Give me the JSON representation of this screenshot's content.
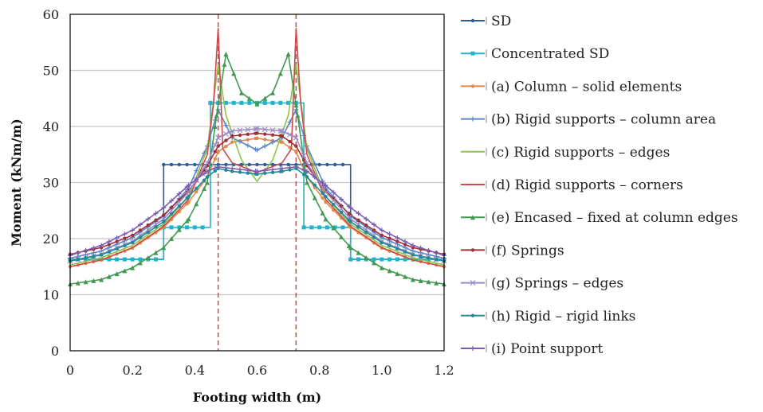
{
  "chart_data": {
    "type": "line",
    "title": "",
    "xlabel": "Footing width (m)",
    "ylabel": "Moment (kNm/m)",
    "xlim": [
      0,
      1.2
    ],
    "ylim": [
      0,
      60
    ],
    "x_ticks": [
      "0",
      "0.2",
      "0.4",
      "0.6",
      "0.8",
      "1.0",
      "1.2"
    ],
    "y_ticks": [
      "0",
      "10",
      "20",
      "30",
      "40",
      "50",
      "60"
    ],
    "grid": "horizontal",
    "legend_position": "right",
    "reference_lines": [
      {
        "x": 0.475,
        "color": "#e04040",
        "style": "dashed"
      },
      {
        "x": 0.725,
        "color": "#e04040",
        "style": "dashed"
      }
    ],
    "series": [
      {
        "name": "SD",
        "color": "#2a5b9c",
        "marker": "dot",
        "x": [
          0,
          0.3,
          0.3,
          0.9,
          0.9,
          1.2
        ],
        "y": [
          16.3,
          16.3,
          33.2,
          33.2,
          16.3,
          16.3
        ]
      },
      {
        "name": "Concentrated SD",
        "color": "#22b2cc",
        "marker": "square",
        "x": [
          0,
          0.3,
          0.3,
          0.45,
          0.45,
          0.75,
          0.75,
          0.9,
          0.9,
          1.2
        ],
        "y": [
          16.3,
          16.3,
          22.0,
          22.0,
          44.2,
          44.2,
          22.0,
          22.0,
          16.3,
          16.3
        ]
      },
      {
        "name": "(a)  Column – solid elements",
        "color": "#e0894a",
        "marker": "dot",
        "x": [
          0,
          0.1,
          0.2,
          0.3,
          0.38,
          0.44,
          0.475,
          0.52,
          0.6,
          0.68,
          0.725,
          0.76,
          0.82,
          0.9,
          1.0,
          1.1,
          1.2
        ],
        "y": [
          15.0,
          16.2,
          18.3,
          22.0,
          26.5,
          31.0,
          35.5,
          37.2,
          37.9,
          37.2,
          35.5,
          31.0,
          26.5,
          22.0,
          18.3,
          16.2,
          15.0
        ]
      },
      {
        "name": "(b)  Rigid supports – column area",
        "color": "#5c86c8",
        "marker": "plus",
        "x": [
          0,
          0.1,
          0.2,
          0.3,
          0.38,
          0.44,
          0.475,
          0.52,
          0.6,
          0.68,
          0.725,
          0.76,
          0.82,
          0.9,
          1.0,
          1.1,
          1.2
        ],
        "y": [
          16.5,
          17.8,
          20.2,
          24.0,
          29.0,
          36.5,
          43.0,
          38.0,
          35.8,
          38.0,
          43.0,
          36.5,
          29.0,
          24.0,
          20.2,
          17.8,
          16.5
        ]
      },
      {
        "name": "(c)  Rigid supports – edges",
        "color": "#8cc44a",
        "marker": "none",
        "x": [
          0,
          0.1,
          0.2,
          0.3,
          0.38,
          0.44,
          0.475,
          0.5,
          0.55,
          0.6,
          0.65,
          0.7,
          0.725,
          0.76,
          0.82,
          0.9,
          1.0,
          1.1,
          1.2
        ],
        "y": [
          15.3,
          16.6,
          18.8,
          22.6,
          27.5,
          36.0,
          51.0,
          42.0,
          34.0,
          30.2,
          34.0,
          42.0,
          51.0,
          36.0,
          27.5,
          22.6,
          18.8,
          16.6,
          15.3
        ]
      },
      {
        "name": "(d)  Rigid supports – corners",
        "color": "#cc4a4a",
        "marker": "none",
        "x": [
          0,
          0.1,
          0.2,
          0.3,
          0.38,
          0.44,
          0.46,
          0.475,
          0.49,
          0.52,
          0.6,
          0.68,
          0.71,
          0.725,
          0.74,
          0.76,
          0.82,
          0.9,
          1.0,
          1.1,
          1.2
        ],
        "y": [
          15.0,
          16.2,
          18.4,
          22.2,
          27.0,
          35.0,
          44.0,
          57.5,
          36.0,
          33.5,
          31.8,
          33.5,
          36.0,
          57.5,
          44.0,
          35.0,
          27.0,
          22.2,
          18.4,
          16.2,
          15.0
        ]
      },
      {
        "name": "(e)  Encased – fixed at column edges",
        "color": "#3f9950",
        "marker": "triangle",
        "x": [
          0,
          0.1,
          0.2,
          0.3,
          0.38,
          0.44,
          0.47,
          0.5,
          0.55,
          0.6,
          0.65,
          0.7,
          0.73,
          0.76,
          0.82,
          0.9,
          1.0,
          1.1,
          1.2
        ],
        "y": [
          11.9,
          12.7,
          14.8,
          18.4,
          23.5,
          30.0,
          42.0,
          52.9,
          46.0,
          44.0,
          46.0,
          52.9,
          42.0,
          30.0,
          23.5,
          18.4,
          14.8,
          12.7,
          11.9
        ]
      },
      {
        "name": "(f)  Springs",
        "color": "#a0303a",
        "marker": "dot",
        "x": [
          0,
          0.1,
          0.2,
          0.3,
          0.38,
          0.44,
          0.475,
          0.52,
          0.6,
          0.68,
          0.725,
          0.76,
          0.82,
          0.9,
          1.0,
          1.1,
          1.2
        ],
        "y": [
          17.2,
          18.4,
          20.6,
          24.2,
          28.5,
          33.0,
          36.5,
          38.3,
          38.8,
          38.3,
          36.5,
          33.0,
          28.5,
          24.2,
          20.6,
          18.4,
          17.2
        ]
      },
      {
        "name": "(g)  Springs – edges",
        "color": "#9a8cc8",
        "marker": "cross",
        "x": [
          0,
          0.1,
          0.2,
          0.3,
          0.38,
          0.44,
          0.475,
          0.52,
          0.6,
          0.68,
          0.725,
          0.76,
          0.82,
          0.9,
          1.0,
          1.1,
          1.2
        ],
        "y": [
          16.0,
          17.2,
          19.5,
          23.5,
          28.3,
          33.5,
          38.0,
          39.2,
          39.6,
          39.2,
          38.0,
          33.5,
          28.3,
          23.5,
          19.5,
          17.2,
          16.0
        ]
      },
      {
        "name": "(h)  Rigid – rigid links",
        "color": "#1f8a96",
        "marker": "dot",
        "x": [
          0,
          0.1,
          0.2,
          0.3,
          0.38,
          0.44,
          0.475,
          0.52,
          0.6,
          0.68,
          0.725,
          0.76,
          0.82,
          0.9,
          1.0,
          1.1,
          1.2
        ],
        "y": [
          16.0,
          17.1,
          19.3,
          23.0,
          27.5,
          31.0,
          32.5,
          32.0,
          31.5,
          32.0,
          32.5,
          31.0,
          27.5,
          23.0,
          19.3,
          17.1,
          16.0
        ]
      },
      {
        "name": "(i)  Point support",
        "color": "#7a5cb4",
        "marker": "plus",
        "x": [
          0,
          0.1,
          0.2,
          0.3,
          0.38,
          0.44,
          0.475,
          0.52,
          0.6,
          0.68,
          0.725,
          0.76,
          0.82,
          0.9,
          1.0,
          1.1,
          1.2
        ],
        "y": [
          17.0,
          18.8,
          21.5,
          25.5,
          29.5,
          32.0,
          32.8,
          32.5,
          32.0,
          32.5,
          32.8,
          32.0,
          29.5,
          25.5,
          21.5,
          18.8,
          17.0
        ]
      }
    ]
  }
}
